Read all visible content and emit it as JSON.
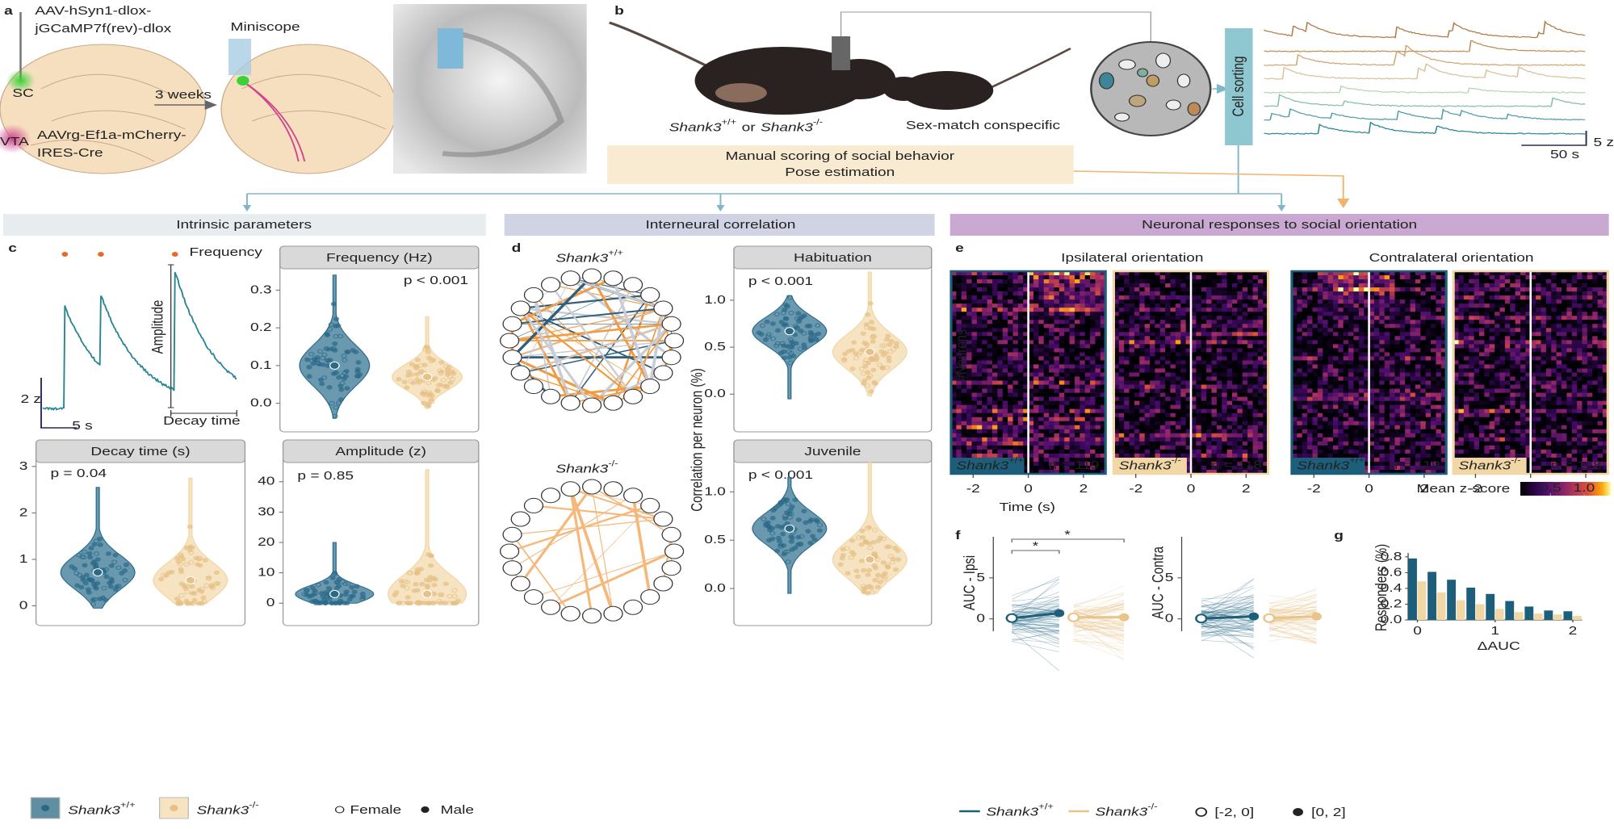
{
  "panel_labels": [
    "a",
    "b",
    "c",
    "d",
    "e",
    "f",
    "g"
  ],
  "genotypes": [
    {
      "gene": "Shank3",
      "allele": "+/+",
      "color": "#1d5f7a"
    },
    {
      "gene": "Shank3",
      "allele": "-/-",
      "color": "#f2d7a6"
    }
  ],
  "panel_a": {
    "virus_1": [
      "AAV-hSyn1-dlox-",
      "jGCaMP7f(rev)-dlox"
    ],
    "region_1": "SC",
    "region_2": "VTA",
    "virus_2": [
      "AAVrg-Ef1a-mCherry-",
      "IRES-Cre"
    ],
    "interval": "3 weeks",
    "device": "Miniscope"
  },
  "panel_b": {
    "subject_connector": "or",
    "conspecific": "Sex-match conspecific",
    "scoring": [
      "Manual scoring of social behavior",
      "Pose estimation"
    ],
    "sorting": "Cell sorting",
    "scale_y": "5 z",
    "scale_x": "50 s"
  },
  "sections": [
    "Intrinsic parameters",
    "Interneural correlation",
    "Neuronal responses to social orientation"
  ],
  "panel_c": {
    "frequency": "Frequency",
    "amplitude": "Amplitude",
    "decay": "Decay time",
    "scale_y": "2 z",
    "scale_x": "5 s"
  },
  "legend": {
    "female": "Female",
    "male": "Male"
  },
  "chart_data": [
    {
      "type": "violin",
      "title": "Frequency (Hz)",
      "annotation": "p < 0.001",
      "ylim": [
        -0.05,
        0.35
      ],
      "yticks": [
        {
          "value": 0,
          "label": "0.0"
        },
        0.1,
        0.2,
        0.3
      ],
      "series": [
        {
          "color": "#2b6c8c",
          "values": [
            0.1
          ],
          "range": [
            -0.04,
            0.34
          ]
        },
        {
          "color": "#f2d7a6",
          "values": [
            0.07
          ],
          "range": [
            -0.01,
            0.23
          ]
        }
      ]
    },
    {
      "type": "violin",
      "title": "Decay time (s)",
      "annotation": "p = 0.04",
      "ylim": [
        -0.2,
        3.05
      ],
      "yticks": [
        0,
        1,
        2,
        3
      ],
      "series": [
        {
          "color": "#2b6c8c",
          "values": [
            0.72
          ],
          "range": [
            -0.05,
            2.55
          ]
        },
        {
          "color": "#f2d7a6",
          "values": [
            0.55
          ],
          "range": [
            0.05,
            2.75
          ]
        }
      ]
    },
    {
      "type": "violin",
      "title": "Amplitude (z)",
      "annotation": "p = 0.85",
      "ylim": [
        -5,
        45
      ],
      "yticks": [
        0,
        10,
        20,
        30,
        40
      ],
      "series": [
        {
          "color": "#2b6c8c",
          "values": [
            3
          ],
          "range": [
            0,
            20
          ]
        },
        {
          "color": "#f2d7a6",
          "values": [
            3
          ],
          "range": [
            0,
            44
          ]
        }
      ]
    },
    {
      "type": "violin",
      "title": "Habituation",
      "annotation": "p < 0.001",
      "ylabel": "Correlation per neuron (%)",
      "ylim": [
        -0.35,
        1.3
      ],
      "yticks": [
        {
          "value": 0,
          "label": "0.0"
        },
        0.5,
        {
          "value": 1,
          "label": "1.0"
        }
      ],
      "series": [
        {
          "color": "#2b6c8c",
          "values": [
            0.67
          ],
          "range": [
            -0.05,
            1.05
          ]
        },
        {
          "color": "#f2d7a6",
          "values": [
            0.45
          ],
          "range": [
            -0.02,
            1.3
          ]
        }
      ]
    },
    {
      "type": "violin",
      "title": "Juvenile",
      "annotation": "p < 0.001",
      "ylim": [
        -0.3,
        1.27
      ],
      "yticks": [
        {
          "value": 0,
          "label": "0.0"
        },
        0.5,
        {
          "value": 1,
          "label": "1.0"
        }
      ],
      "series": [
        {
          "color": "#2b6c8c",
          "values": [
            0.62
          ],
          "range": [
            -0.05,
            1.15
          ]
        },
        {
          "color": "#f2d7a6",
          "values": [
            0.3
          ],
          "range": [
            -0.05,
            1.3
          ]
        }
      ]
    },
    {
      "type": "line",
      "ylabel": "AUC - Ipsi",
      "categories": [
        "[-2, 0]",
        "[0, 2]"
      ],
      "ylim": [
        -1.5,
        10
      ],
      "yticks": [
        0,
        5
      ],
      "annotations": [
        "*",
        "*"
      ],
      "series": [
        {
          "color": "#1d5f7a",
          "values": [
            0.1,
            0.7
          ]
        },
        {
          "color": "#f2d7a6",
          "values": [
            0.2,
            0.2
          ]
        }
      ]
    },
    {
      "type": "line",
      "ylabel": "AUC - Contra",
      "ylim": [
        -1.5,
        10
      ],
      "yticks": [
        0,
        5
      ],
      "series": [
        {
          "color": "#1d5f7a",
          "values": [
            0.05,
            0.3
          ]
        },
        {
          "color": "#f2d7a6",
          "values": [
            0.1,
            0.3
          ]
        }
      ]
    },
    {
      "type": "bar",
      "xlabel": "ΔAUC",
      "ylabel": "Responders (%)",
      "x": [
        0,
        0.25,
        0.5,
        0.75,
        1,
        1.25,
        1.5,
        1.75,
        2
      ],
      "xlim": [
        -0.12,
        2.12
      ],
      "xticks": [
        0,
        1,
        2
      ],
      "ylim": [
        0,
        0.85
      ],
      "yticks": [
        {
          "value": 0,
          "label": "0.0"
        },
        0.2,
        0.4,
        0.6,
        0.8
      ],
      "series": [
        {
          "color": "#1d5f7a",
          "values": [
            0.78,
            0.61,
            0.51,
            0.41,
            0.33,
            0.24,
            0.17,
            0.12,
            0.11
          ]
        },
        {
          "color": "#f2d7a6",
          "values": [
            0.49,
            0.35,
            0.25,
            0.2,
            0.14,
            0.1,
            0.08,
            0.07,
            0.05
          ]
        }
      ]
    },
    {
      "type": "heatmap",
      "titles": [
        "Ipsilateral orientation",
        "Contralateral orientation"
      ],
      "ylabel": "#Neurons",
      "n_labels": [
        "n = 119",
        "n = 118",
        "n = 119",
        "n = 118"
      ],
      "xlabel": "Time (s)",
      "xlim": [
        -2.8,
        2.8
      ],
      "xticks": [
        -2,
        0,
        2
      ],
      "colorbar": {
        "label": "Mean z-score",
        "lim": [
          0.05,
          1.4
        ],
        "ticks": [
          0.5,
          {
            "value": 1,
            "label": "1.0"
          }
        ]
      }
    }
  ]
}
